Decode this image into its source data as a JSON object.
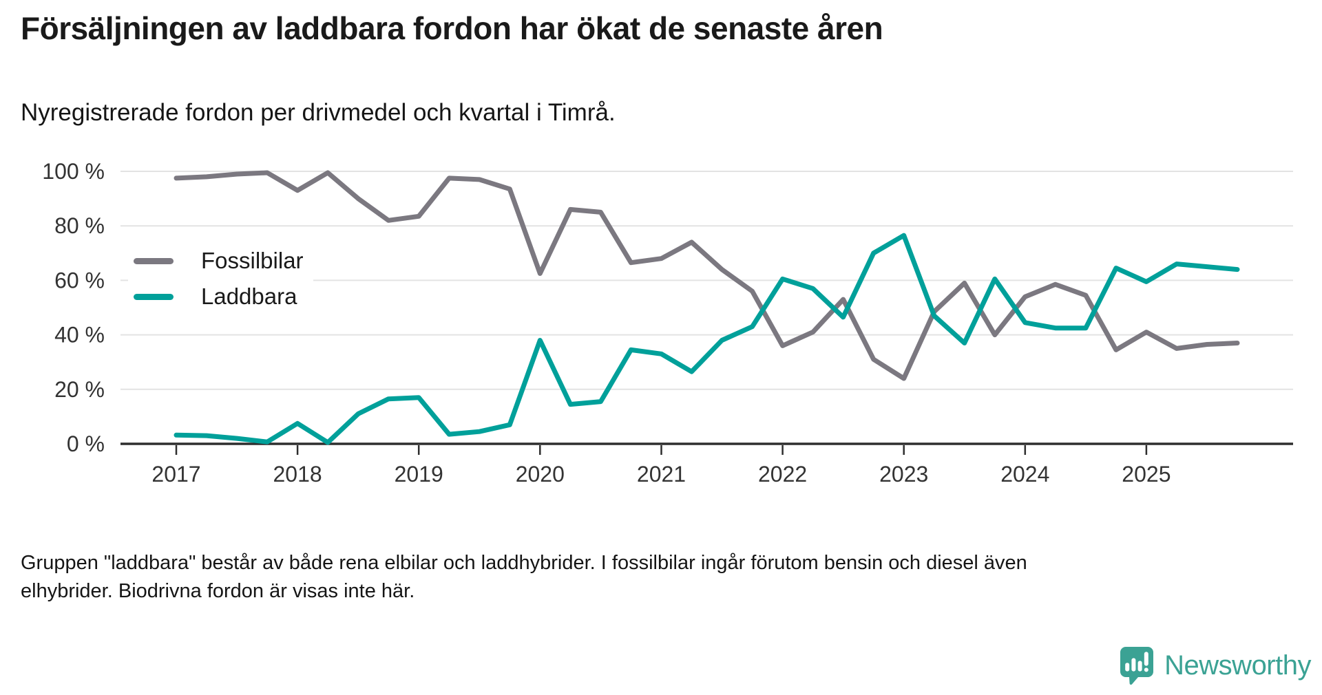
{
  "header": {
    "title": "Försäljningen av laddbara fordon har ökat de senaste åren",
    "subtitle": "Nyregistrerade fordon per drivmedel och kvartal i Timrå."
  },
  "legend": {
    "items": [
      {
        "label": "Fossilbilar",
        "color": "#7b7880"
      },
      {
        "label": "Laddbara",
        "color": "#00a09a"
      }
    ]
  },
  "footer": {
    "line1": "Gruppen \"laddbara\" består av både rena elbilar och laddhybrider. I fossilbilar ingår förutom bensin och diesel även",
    "line2": "elhybrider. Biodrivna fordon är visas inte här."
  },
  "logo": {
    "name": "Newsworthy",
    "color": "#3ba294"
  },
  "colors": {
    "fossil": "#7b7880",
    "laddbara": "#00a09a",
    "axis_text": "#333333",
    "grid": "#e3e3e3",
    "axis_line": "#2e2e2e"
  },
  "chart_data": {
    "type": "line",
    "title": "Försäljningen av laddbara fordon har ökat de senaste åren",
    "subtitle": "Nyregistrerade fordon per drivmedel och kvartal i Timrå.",
    "x_unit": "quarter",
    "x_start": "2017-Q1",
    "x_end": "2025-Q4",
    "years": [
      "2017",
      "2018",
      "2019",
      "2020",
      "2021",
      "2022",
      "2023",
      "2024",
      "2025"
    ],
    "ylim": [
      0,
      100
    ],
    "yticks": [
      0,
      20,
      40,
      60,
      80,
      100
    ],
    "ytick_labels": [
      "0 %",
      "20 %",
      "40 %",
      "60 %",
      "80 %",
      "100 %"
    ],
    "grid": true,
    "legend_position": "inside-left",
    "series": [
      {
        "name": "Fossilbilar",
        "color": "#7b7880",
        "values": [
          97.5,
          98,
          99,
          99.5,
          93,
          99.5,
          90,
          82,
          83.5,
          97.5,
          97,
          93.5,
          62.5,
          86,
          85,
          66.5,
          68,
          74,
          64,
          56,
          36,
          41,
          53,
          31,
          24,
          48.5,
          59,
          40,
          54,
          58.5,
          54.5,
          34.5,
          41,
          35,
          36.5,
          37
        ]
      },
      {
        "name": "Laddbara",
        "color": "#00a09a",
        "values": [
          3.2,
          3,
          2,
          0.7,
          7.5,
          0.5,
          11,
          16.5,
          17,
          3.5,
          4.5,
          7,
          38,
          14.5,
          15.5,
          34.5,
          33,
          26.5,
          38,
          43,
          60.5,
          57,
          46.5,
          70,
          76.5,
          47,
          37,
          60.5,
          44.5,
          42.5,
          42.5,
          64.5,
          59.5,
          66,
          65,
          64
        ]
      }
    ]
  }
}
